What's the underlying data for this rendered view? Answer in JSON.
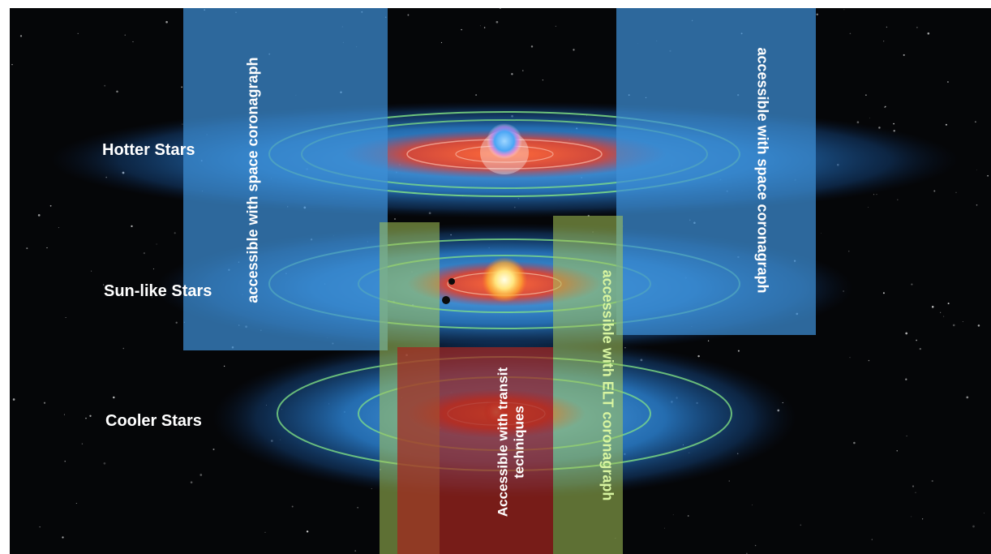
{
  "star_rows": [
    {
      "label": "Hotter Stars"
    },
    {
      "label": "Sun-like Stars"
    },
    {
      "label": "Cooler Stars"
    }
  ],
  "regions": {
    "space_coronagraph_left": "accessible with space coronagraph",
    "space_coronagraph_right": "accessible with space coronagraph",
    "elt_coronagraph": "accessible with ELT coronagraph",
    "transit_line1": "Accessible with transit",
    "transit_line2": "techniques"
  },
  "colors": {
    "space_band": "#3d8fd6",
    "elt_band": "#a7c85a",
    "transit_band": "#a3251e",
    "habitable_zone_green": "#7de87d",
    "hot_zone_red": "#d8402a",
    "halo_blue": "#2f9bff"
  }
}
